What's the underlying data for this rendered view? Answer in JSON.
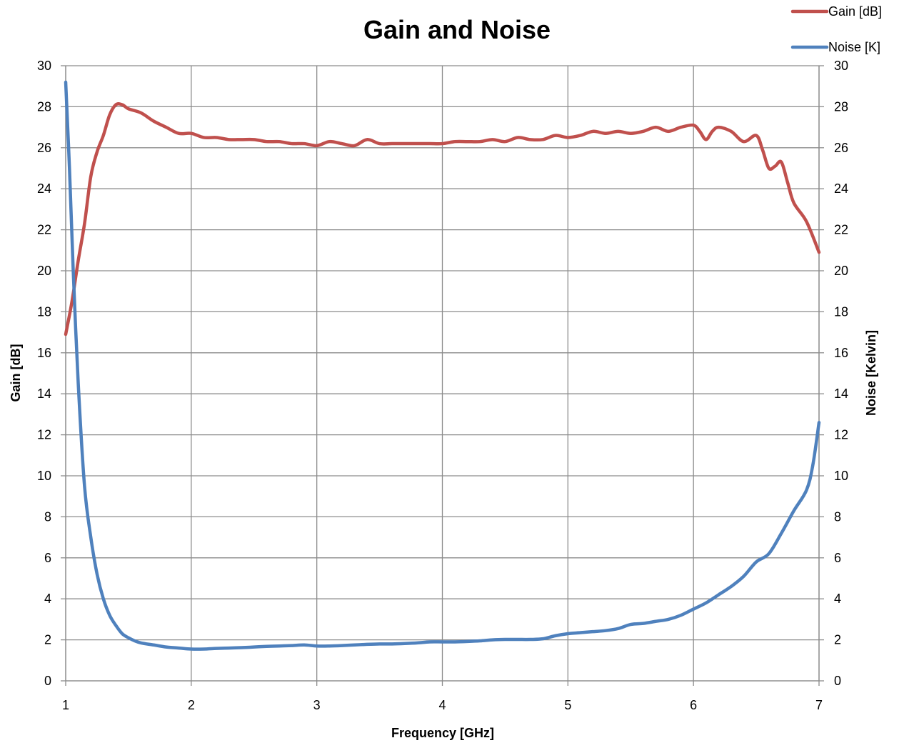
{
  "chart_data": {
    "type": "line",
    "title": "Gain and Noise",
    "xlabel": "Frequency [GHz]",
    "ylabel_left": "Gain [dB]",
    "ylabel_right": "Noise [Kelvin]",
    "xlim": [
      1,
      7
    ],
    "ylim_left": [
      0,
      30
    ],
    "ylim_right": [
      0,
      30
    ],
    "x_ticks": [
      1,
      2,
      3,
      4,
      5,
      6,
      7
    ],
    "y_ticks": [
      0,
      2,
      4,
      6,
      8,
      10,
      12,
      14,
      16,
      18,
      20,
      22,
      24,
      26,
      28,
      30
    ],
    "grid": true,
    "legend_position": "top-right",
    "series": [
      {
        "name": "Gain [dB]",
        "axis": "left",
        "color": "#c0504d",
        "x": [
          1.0,
          1.05,
          1.1,
          1.15,
          1.2,
          1.25,
          1.3,
          1.35,
          1.4,
          1.45,
          1.5,
          1.6,
          1.7,
          1.8,
          1.9,
          2.0,
          2.1,
          2.2,
          2.3,
          2.4,
          2.5,
          2.6,
          2.7,
          2.8,
          2.9,
          3.0,
          3.1,
          3.2,
          3.3,
          3.4,
          3.5,
          3.6,
          3.7,
          3.8,
          3.9,
          4.0,
          4.1,
          4.2,
          4.3,
          4.4,
          4.5,
          4.6,
          4.7,
          4.8,
          4.9,
          5.0,
          5.1,
          5.2,
          5.3,
          5.4,
          5.5,
          5.6,
          5.7,
          5.8,
          5.9,
          6.0,
          6.05,
          6.1,
          6.15,
          6.2,
          6.3,
          6.4,
          6.5,
          6.55,
          6.6,
          6.65,
          6.7,
          6.75,
          6.8,
          6.9,
          7.0
        ],
        "values": [
          16.9,
          18.5,
          20.5,
          22.3,
          24.6,
          25.8,
          26.6,
          27.6,
          28.1,
          28.1,
          27.9,
          27.7,
          27.3,
          27.0,
          26.7,
          26.7,
          26.5,
          26.5,
          26.4,
          26.4,
          26.4,
          26.3,
          26.3,
          26.2,
          26.2,
          26.1,
          26.3,
          26.2,
          26.1,
          26.4,
          26.2,
          26.2,
          26.2,
          26.2,
          26.2,
          26.2,
          26.3,
          26.3,
          26.3,
          26.4,
          26.3,
          26.5,
          26.4,
          26.4,
          26.6,
          26.5,
          26.6,
          26.8,
          26.7,
          26.8,
          26.7,
          26.8,
          27.0,
          26.8,
          27.0,
          27.1,
          26.8,
          26.4,
          26.8,
          27.0,
          26.8,
          26.3,
          26.6,
          25.9,
          25.0,
          25.1,
          25.3,
          24.3,
          23.3,
          22.4,
          20.9
        ]
      },
      {
        "name": "Noise [K]",
        "axis": "right",
        "color": "#4f81bd",
        "x": [
          1.0,
          1.03,
          1.06,
          1.1,
          1.15,
          1.2,
          1.25,
          1.3,
          1.35,
          1.4,
          1.45,
          1.5,
          1.55,
          1.6,
          1.7,
          1.8,
          1.9,
          2.0,
          2.1,
          2.2,
          2.3,
          2.4,
          2.5,
          2.6,
          2.7,
          2.8,
          2.9,
          3.0,
          3.1,
          3.2,
          3.3,
          3.4,
          3.5,
          3.6,
          3.7,
          3.8,
          3.9,
          4.0,
          4.1,
          4.2,
          4.3,
          4.4,
          4.5,
          4.6,
          4.7,
          4.8,
          4.9,
          5.0,
          5.1,
          5.2,
          5.3,
          5.4,
          5.5,
          5.6,
          5.7,
          5.8,
          5.9,
          6.0,
          6.1,
          6.2,
          6.3,
          6.4,
          6.5,
          6.6,
          6.7,
          6.8,
          6.9,
          6.95,
          7.0
        ],
        "values": [
          29.2,
          25.0,
          20.0,
          14.5,
          9.5,
          7.0,
          5.2,
          4.0,
          3.2,
          2.7,
          2.3,
          2.1,
          1.95,
          1.85,
          1.75,
          1.65,
          1.6,
          1.55,
          1.55,
          1.58,
          1.6,
          1.62,
          1.65,
          1.68,
          1.7,
          1.72,
          1.75,
          1.7,
          1.7,
          1.72,
          1.75,
          1.78,
          1.8,
          1.8,
          1.82,
          1.85,
          1.9,
          1.9,
          1.9,
          1.92,
          1.95,
          2.0,
          2.02,
          2.02,
          2.02,
          2.05,
          2.2,
          2.3,
          2.35,
          2.4,
          2.45,
          2.55,
          2.75,
          2.8,
          2.9,
          3.0,
          3.2,
          3.5,
          3.8,
          4.2,
          4.6,
          5.1,
          5.8,
          6.2,
          7.2,
          8.3,
          9.3,
          10.5,
          12.6
        ]
      }
    ]
  }
}
